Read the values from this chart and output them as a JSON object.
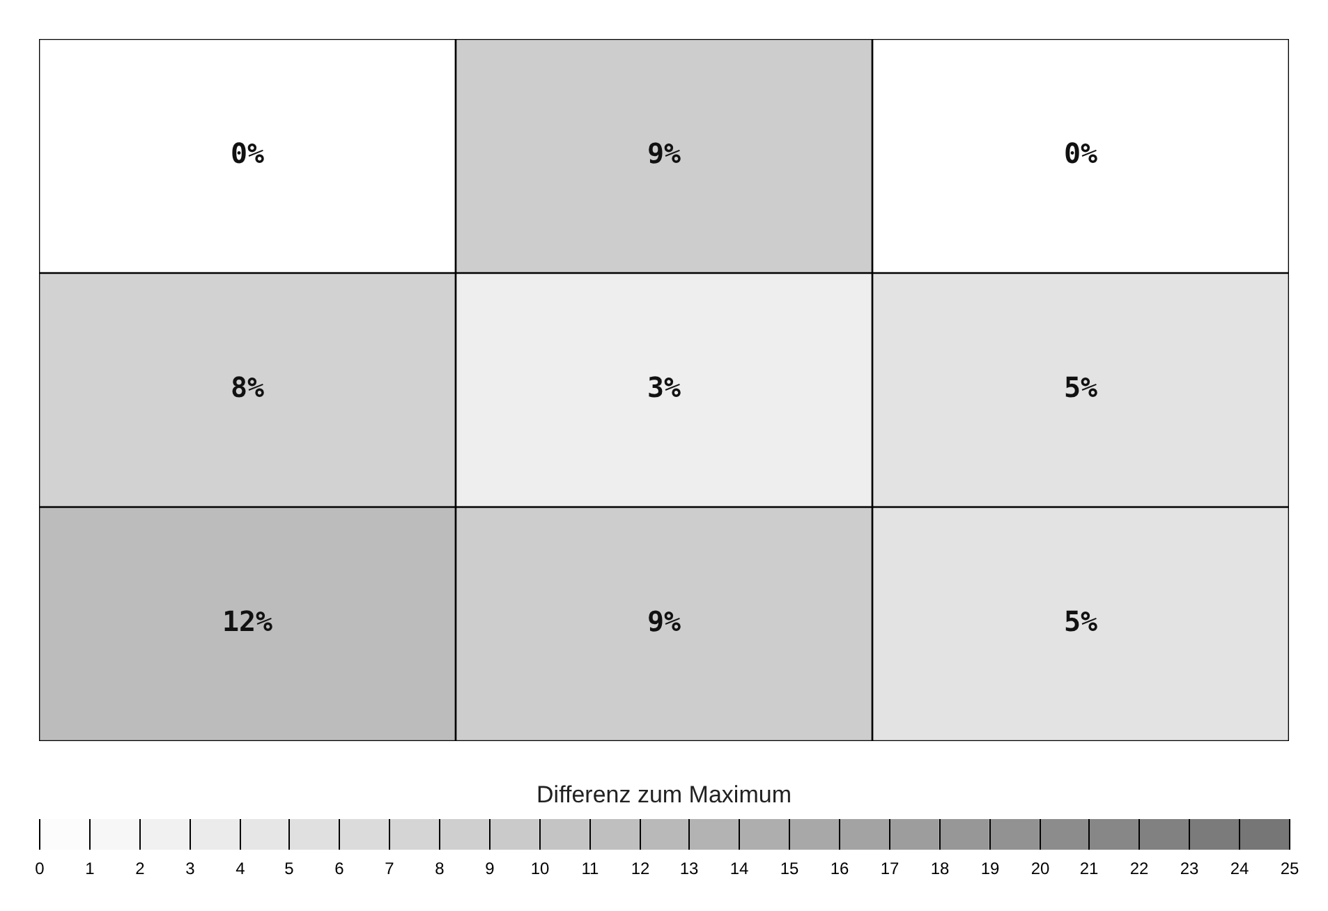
{
  "chart_data": {
    "type": "heatmap",
    "categories": [
      null,
      null,
      null
    ],
    "y_categories": [
      null,
      null,
      null
    ],
    "cells": [
      [
        0,
        9,
        0
      ],
      [
        8,
        3,
        5
      ],
      [
        12,
        9,
        5
      ]
    ],
    "cell_labels": [
      [
        "0%",
        "9%",
        "0%"
      ],
      [
        "8%",
        "3%",
        "5%"
      ],
      [
        "12%",
        "9%",
        "5%"
      ]
    ],
    "clabel": "Differenz zum Maximum",
    "clim": [
      0,
      25
    ],
    "cticks": [
      0,
      1,
      2,
      3,
      4,
      5,
      6,
      7,
      8,
      9,
      10,
      11,
      12,
      13,
      14,
      15,
      16,
      17,
      18,
      19,
      20,
      21,
      22,
      23,
      24,
      25
    ]
  }
}
